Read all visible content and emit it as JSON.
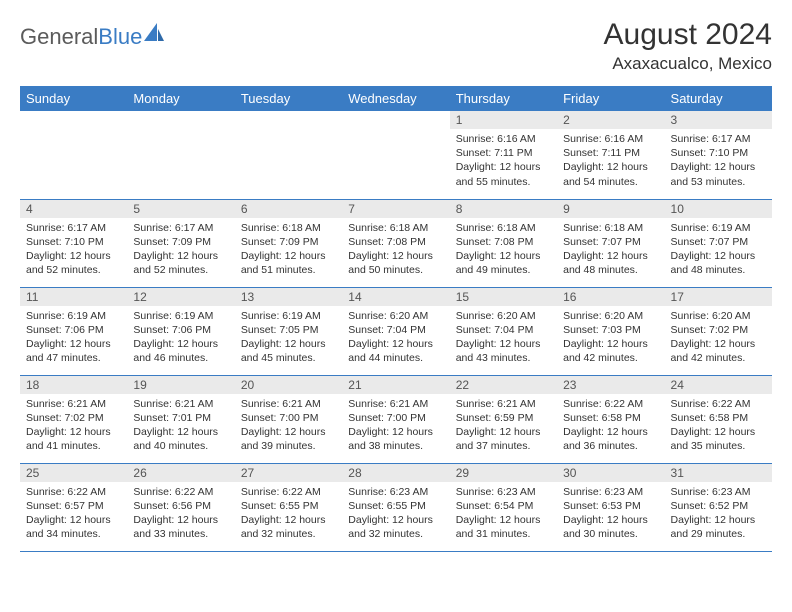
{
  "logo": {
    "text1": "General",
    "text2": "Blue"
  },
  "title": "August 2024",
  "location": "Axaxacualco, Mexico",
  "colors": {
    "header_bg": "#3a7cc4",
    "header_text": "#ffffff",
    "daynum_bg": "#eaeaea",
    "rule": "#3a7cc4",
    "body_text": "#333333",
    "logo_gray": "#5b5b5b",
    "logo_blue": "#3a7cc4"
  },
  "weekdays": [
    "Sunday",
    "Monday",
    "Tuesday",
    "Wednesday",
    "Thursday",
    "Friday",
    "Saturday"
  ],
  "weeks": [
    [
      null,
      null,
      null,
      null,
      {
        "n": "1",
        "sr": "6:16 AM",
        "ss": "7:11 PM",
        "dl": "12 hours and 55 minutes."
      },
      {
        "n": "2",
        "sr": "6:16 AM",
        "ss": "7:11 PM",
        "dl": "12 hours and 54 minutes."
      },
      {
        "n": "3",
        "sr": "6:17 AM",
        "ss": "7:10 PM",
        "dl": "12 hours and 53 minutes."
      }
    ],
    [
      {
        "n": "4",
        "sr": "6:17 AM",
        "ss": "7:10 PM",
        "dl": "12 hours and 52 minutes."
      },
      {
        "n": "5",
        "sr": "6:17 AM",
        "ss": "7:09 PM",
        "dl": "12 hours and 52 minutes."
      },
      {
        "n": "6",
        "sr": "6:18 AM",
        "ss": "7:09 PM",
        "dl": "12 hours and 51 minutes."
      },
      {
        "n": "7",
        "sr": "6:18 AM",
        "ss": "7:08 PM",
        "dl": "12 hours and 50 minutes."
      },
      {
        "n": "8",
        "sr": "6:18 AM",
        "ss": "7:08 PM",
        "dl": "12 hours and 49 minutes."
      },
      {
        "n": "9",
        "sr": "6:18 AM",
        "ss": "7:07 PM",
        "dl": "12 hours and 48 minutes."
      },
      {
        "n": "10",
        "sr": "6:19 AM",
        "ss": "7:07 PM",
        "dl": "12 hours and 48 minutes."
      }
    ],
    [
      {
        "n": "11",
        "sr": "6:19 AM",
        "ss": "7:06 PM",
        "dl": "12 hours and 47 minutes."
      },
      {
        "n": "12",
        "sr": "6:19 AM",
        "ss": "7:06 PM",
        "dl": "12 hours and 46 minutes."
      },
      {
        "n": "13",
        "sr": "6:19 AM",
        "ss": "7:05 PM",
        "dl": "12 hours and 45 minutes."
      },
      {
        "n": "14",
        "sr": "6:20 AM",
        "ss": "7:04 PM",
        "dl": "12 hours and 44 minutes."
      },
      {
        "n": "15",
        "sr": "6:20 AM",
        "ss": "7:04 PM",
        "dl": "12 hours and 43 minutes."
      },
      {
        "n": "16",
        "sr": "6:20 AM",
        "ss": "7:03 PM",
        "dl": "12 hours and 42 minutes."
      },
      {
        "n": "17",
        "sr": "6:20 AM",
        "ss": "7:02 PM",
        "dl": "12 hours and 42 minutes."
      }
    ],
    [
      {
        "n": "18",
        "sr": "6:21 AM",
        "ss": "7:02 PM",
        "dl": "12 hours and 41 minutes."
      },
      {
        "n": "19",
        "sr": "6:21 AM",
        "ss": "7:01 PM",
        "dl": "12 hours and 40 minutes."
      },
      {
        "n": "20",
        "sr": "6:21 AM",
        "ss": "7:00 PM",
        "dl": "12 hours and 39 minutes."
      },
      {
        "n": "21",
        "sr": "6:21 AM",
        "ss": "7:00 PM",
        "dl": "12 hours and 38 minutes."
      },
      {
        "n": "22",
        "sr": "6:21 AM",
        "ss": "6:59 PM",
        "dl": "12 hours and 37 minutes."
      },
      {
        "n": "23",
        "sr": "6:22 AM",
        "ss": "6:58 PM",
        "dl": "12 hours and 36 minutes."
      },
      {
        "n": "24",
        "sr": "6:22 AM",
        "ss": "6:58 PM",
        "dl": "12 hours and 35 minutes."
      }
    ],
    [
      {
        "n": "25",
        "sr": "6:22 AM",
        "ss": "6:57 PM",
        "dl": "12 hours and 34 minutes."
      },
      {
        "n": "26",
        "sr": "6:22 AM",
        "ss": "6:56 PM",
        "dl": "12 hours and 33 minutes."
      },
      {
        "n": "27",
        "sr": "6:22 AM",
        "ss": "6:55 PM",
        "dl": "12 hours and 32 minutes."
      },
      {
        "n": "28",
        "sr": "6:23 AM",
        "ss": "6:55 PM",
        "dl": "12 hours and 32 minutes."
      },
      {
        "n": "29",
        "sr": "6:23 AM",
        "ss": "6:54 PM",
        "dl": "12 hours and 31 minutes."
      },
      {
        "n": "30",
        "sr": "6:23 AM",
        "ss": "6:53 PM",
        "dl": "12 hours and 30 minutes."
      },
      {
        "n": "31",
        "sr": "6:23 AM",
        "ss": "6:52 PM",
        "dl": "12 hours and 29 minutes."
      }
    ]
  ],
  "labels": {
    "sunrise": "Sunrise:",
    "sunset": "Sunset:",
    "daylight": "Daylight:"
  }
}
